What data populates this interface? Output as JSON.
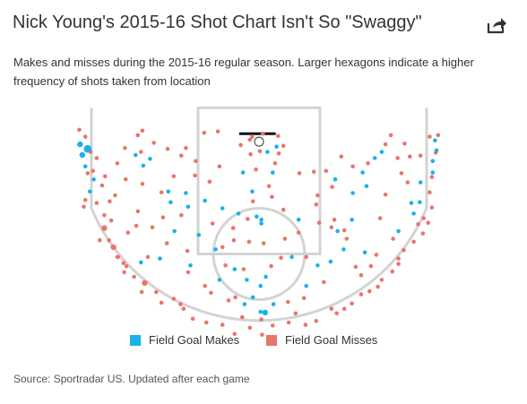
{
  "header": {
    "title": "Nick Young's 2015-16 Shot Chart Isn't So \"Swaggy\"",
    "share_icon": "share-arrow-icon"
  },
  "subtitle": "Makes and misses during the 2015-16 regular season. Larger hexagons indicate a higher frequency of shots taken from location",
  "legend": {
    "makes_label": "Field Goal Makes",
    "misses_label": "Field Goal Misses"
  },
  "colors": {
    "make": "#1ab2e8",
    "miss": "#e8766d",
    "court_lines": "#d3d3d3",
    "rim": "#555555",
    "backboard": "#111111"
  },
  "source": "Sportradar US. Updated after each game",
  "source_prefix": "Source: ",
  "chart_data": {
    "type": "scatter",
    "coordinate_units": "feet from basket (x: sideline-to-sideline, y: toward half court)",
    "xlim": [
      -25,
      25
    ],
    "ylim": [
      -4,
      30
    ],
    "series": [
      {
        "name": "Field Goal Makes",
        "points": [
          [
            -23.5,
            0.6,
            2
          ],
          [
            -23.2,
            2,
            2
          ],
          [
            -22.5,
            1.2,
            3
          ],
          [
            -22.8,
            3.5,
            1
          ],
          [
            -21.7,
            5.2,
            1
          ],
          [
            -22.2,
            6.8,
            1
          ],
          [
            -16.2,
            2,
            1
          ],
          [
            -15.2,
            3.4,
            1
          ],
          [
            -14.3,
            2.5,
            1
          ],
          [
            -11.9,
            6.8,
            1
          ],
          [
            -11.6,
            8.2,
            1
          ],
          [
            -9.6,
            7,
            1
          ],
          [
            -9.3,
            8.8,
            1
          ],
          [
            -11.1,
            12,
            1
          ],
          [
            -7.1,
            8,
            1
          ],
          [
            -7.9,
            12.5,
            1
          ],
          [
            -9,
            16.5,
            1
          ],
          [
            -13,
            15.6,
            1
          ],
          [
            -15.5,
            16.1,
            1
          ],
          [
            -5.7,
            14.4,
            1
          ],
          [
            -5.2,
            18.4,
            1
          ],
          [
            -3.2,
            17,
            1
          ],
          [
            -1.6,
            18.4,
            1
          ],
          [
            -0.8,
            20.7,
            1
          ],
          [
            -1.9,
            21.6,
            1
          ],
          [
            0.2,
            22.6,
            1
          ],
          [
            0.8,
            22.7,
            2
          ],
          [
            1.9,
            21.6,
            1
          ],
          [
            0.2,
            19.2,
            1
          ],
          [
            0.9,
            18,
            1
          ],
          [
            -4.8,
            9,
            1
          ],
          [
            -2.7,
            9.7,
            1
          ],
          [
            -0.3,
            10.1,
            1
          ],
          [
            0.3,
            10.5,
            1
          ],
          [
            0.3,
            11,
            1
          ],
          [
            -0.9,
            6.8,
            1
          ],
          [
            1.8,
            4.3,
            1
          ],
          [
            -2.1,
            4.3,
            1
          ],
          [
            1.1,
            1.6,
            1
          ],
          [
            2.3,
            0.9,
            1
          ],
          [
            5.2,
            10.5,
            1
          ],
          [
            4.3,
            15.4,
            1
          ],
          [
            6.2,
            19.2,
            1
          ],
          [
            7.7,
            16.5,
            1
          ],
          [
            9.4,
            16,
            1
          ],
          [
            11.1,
            14.4,
            1
          ],
          [
            10.3,
            12,
            1
          ],
          [
            13.9,
            14.8,
            1
          ],
          [
            12.2,
            10.5,
            1
          ],
          [
            12.3,
            7,
            1
          ],
          [
            10,
            5.2,
            1
          ],
          [
            14.1,
            6.1,
            1
          ],
          [
            13.6,
            4.3,
            1
          ],
          [
            15.2,
            2.4,
            1
          ],
          [
            16.1,
            1.6,
            1
          ],
          [
            18.3,
            12,
            1
          ],
          [
            20,
            8.3,
            1
          ],
          [
            20.3,
            9.7,
            1
          ],
          [
            21.1,
            8.2,
            1
          ],
          [
            21.2,
            5.6,
            1
          ],
          [
            22.8,
            4.3,
            1
          ],
          [
            22.8,
            2.8,
            1
          ],
          [
            23.3,
            1.4,
            1
          ],
          [
            23.1,
            0.1,
            1
          ]
        ]
      },
      {
        "name": "Field Goal Misses",
        "points": [
          [
            -23.6,
            -1.3,
            1
          ],
          [
            -22.8,
            -0.4,
            1
          ],
          [
            -22.1,
            1.6,
            1
          ],
          [
            -22.5,
            4.4,
            1
          ],
          [
            -21.8,
            4.1,
            1
          ],
          [
            -22.8,
            7.9,
            1
          ],
          [
            -23,
            8.8,
            1
          ],
          [
            -21.3,
            8.3,
            1
          ],
          [
            -20.3,
            9.9,
            1
          ],
          [
            -20.3,
            11.6,
            2
          ],
          [
            -19.7,
            13.2,
            1
          ],
          [
            -19.1,
            14.1,
            2
          ],
          [
            -18.5,
            15.4,
            1
          ],
          [
            -17.8,
            16.2,
            1
          ],
          [
            -17.7,
            17.4,
            1
          ],
          [
            -16.4,
            18,
            1
          ],
          [
            -15,
            18.8,
            2
          ],
          [
            -13.5,
            20,
            1
          ],
          [
            -12.8,
            21.4,
            1
          ],
          [
            -11.2,
            20.9,
            1
          ],
          [
            -10.3,
            21.6,
            1
          ],
          [
            -8.7,
            23.5,
            1
          ],
          [
            -6.9,
            24,
            1
          ],
          [
            -4.8,
            24.3,
            1
          ],
          [
            -3.2,
            25.5,
            1
          ],
          [
            -1.2,
            24.7,
            1
          ],
          [
            0.4,
            25.6,
            1
          ],
          [
            1.8,
            24.4,
            1
          ],
          [
            3.9,
            24,
            1
          ],
          [
            6.1,
            24.3,
            1
          ],
          [
            7.5,
            23.8,
            1
          ],
          [
            9.5,
            22.2,
            1
          ],
          [
            11.2,
            22.2,
            1
          ],
          [
            12.2,
            21.5,
            1
          ],
          [
            13.4,
            20.3,
            1
          ],
          [
            14.5,
            19.9,
            1
          ],
          [
            16.1,
            18.4,
            1
          ],
          [
            17.5,
            17.3,
            1
          ],
          [
            18.3,
            16.3,
            1
          ],
          [
            19,
            14.5,
            1
          ],
          [
            20.3,
            13.4,
            1
          ],
          [
            20.9,
            11.1,
            1
          ],
          [
            21.6,
            10.3,
            1
          ],
          [
            22.7,
            8.9,
            1
          ],
          [
            22.4,
            6.9,
            1
          ],
          [
            23.5,
            -0.6,
            1
          ],
          [
            23.2,
            1.7,
            1
          ],
          [
            22.7,
            4.9,
            1
          ],
          [
            -19.4,
            10.6,
            1
          ],
          [
            -17.2,
            12.2,
            1
          ],
          [
            -16.1,
            11.3,
            1
          ],
          [
            -14.6,
            15.4,
            1
          ],
          [
            -17.4,
            16.6,
            1
          ],
          [
            -15.9,
            9.4,
            1
          ],
          [
            -14,
            11.5,
            1
          ],
          [
            -12.6,
            10.2,
            1
          ],
          [
            -10.2,
            9.9,
            1
          ],
          [
            -12.8,
            6.9,
            1
          ],
          [
            -15.3,
            5.8,
            1
          ],
          [
            -17.5,
            5.2,
            1
          ],
          [
            -18.6,
            3.1,
            1
          ],
          [
            -17.6,
            1.1,
            1
          ],
          [
            -15.9,
            -0.6,
            1
          ],
          [
            -15.3,
            -1.2,
            1
          ],
          [
            -13.8,
            0.4,
            1
          ],
          [
            -12,
            1.2,
            1
          ],
          [
            -11.2,
            4.8,
            1
          ],
          [
            -8.4,
            4.7,
            1
          ],
          [
            -8.3,
            2.8,
            1
          ],
          [
            -6.5,
            5.5,
            1
          ],
          [
            -6.1,
            11,
            1
          ],
          [
            -4.8,
            14.1,
            1
          ],
          [
            -3.3,
            13.2,
            1
          ],
          [
            -3.4,
            11.6,
            1
          ],
          [
            -5.2,
            3.5,
            1
          ],
          [
            -2.4,
            0.7,
            1
          ],
          [
            -1.2,
            0,
            1
          ],
          [
            -1.1,
            1.9,
            1
          ],
          [
            0.1,
            1.5,
            1
          ],
          [
            2.6,
            1.8,
            1
          ],
          [
            3.2,
            0.8,
            1
          ],
          [
            2.1,
            3.1,
            1
          ],
          [
            1.3,
            6.1,
            1
          ],
          [
            1.7,
            7.5,
            1
          ],
          [
            -0.8,
            8.1,
            1
          ],
          [
            -1.5,
            10.4,
            1
          ],
          [
            3.2,
            9.2,
            1
          ],
          [
            3.4,
            13,
            1
          ],
          [
            0.6,
            13.6,
            1
          ],
          [
            -1.3,
            13.4,
            1
          ],
          [
            5.2,
            12.2,
            1
          ],
          [
            7.9,
            10.9,
            1
          ],
          [
            7.5,
            8.5,
            1
          ],
          [
            7.7,
            7.3,
            1
          ],
          [
            7.2,
            4.2,
            1
          ],
          [
            8.8,
            4.1,
            1
          ],
          [
            9.6,
            6.2,
            1
          ],
          [
            9.9,
            10.5,
            1
          ],
          [
            9.5,
            11.5,
            1
          ],
          [
            11.2,
            11.9,
            1
          ],
          [
            11.5,
            13,
            1
          ],
          [
            12.7,
            16.7,
            1
          ],
          [
            13.4,
            17.8,
            1
          ],
          [
            14.7,
            16.6,
            1
          ],
          [
            15.4,
            15.1,
            1
          ],
          [
            17.6,
            13,
            1
          ],
          [
            15.9,
            10.3,
            1
          ],
          [
            16.6,
            7.2,
            1
          ],
          [
            16.6,
            0.6,
            1
          ],
          [
            17.3,
            -0.6,
            1
          ],
          [
            18.2,
            2.4,
            1
          ],
          [
            18.7,
            4.4,
            1
          ],
          [
            19.5,
            5.6,
            1
          ],
          [
            21.2,
            2.1,
            1
          ],
          [
            22.4,
            -0.4,
            1
          ],
          [
            -4.4,
            16.5,
            1
          ],
          [
            -2,
            17,
            1
          ],
          [
            1.6,
            16.6,
            1
          ],
          [
            2.9,
            15.5,
            1
          ],
          [
            6.2,
            15.4,
            1
          ],
          [
            -0.9,
            -0.4,
            1
          ],
          [
            0.5,
            -0.8,
            1
          ],
          [
            2.5,
            -0.5,
            1
          ],
          [
            -20.6,
            6,
            1
          ],
          [
            -12.1,
            13.6,
            1
          ],
          [
            -9.4,
            14.6,
            1
          ],
          [
            -9.3,
            17.4,
            1
          ],
          [
            -6.3,
            20.1,
            1
          ],
          [
            -7.1,
            19.2,
            1
          ],
          [
            -4,
            21.1,
            1
          ],
          [
            -3.1,
            20.7,
            1
          ],
          [
            3.8,
            21.3,
            1
          ],
          [
            5.9,
            20.8,
            1
          ],
          [
            8.5,
            18.7,
            1
          ],
          [
            -0.4,
            3.9,
            1
          ],
          [
            0.3,
            23.6,
            1
          ],
          [
            -2.2,
            23.3,
            1
          ],
          [
            4.8,
            22.8,
            1
          ],
          [
            -21.3,
            2.4,
            1
          ],
          [
            -20.2,
            4.8,
            1
          ],
          [
            -18.9,
            7.3,
            1
          ],
          [
            -19.6,
            8.1,
            1
          ],
          [
            -15.5,
            1.6,
            1
          ],
          [
            -10.2,
            2.1,
            1
          ],
          [
            -9.6,
            1.1,
            1
          ],
          [
            -7.2,
            -0.9,
            1
          ],
          [
            -5.4,
            -1.1,
            1
          ],
          [
            5.3,
            4.4,
            1
          ],
          [
            10.8,
            2.2,
            1
          ],
          [
            12.3,
            3.5,
            1
          ],
          [
            14.3,
            3.1,
            1
          ],
          [
            19.1,
            0.5,
            1
          ],
          [
            19.8,
            2.2,
            1
          ],
          [
            -20.9,
            13.2,
            1
          ],
          [
            -18.6,
            15.4,
            1
          ],
          [
            21.5,
            12.3,
            1
          ],
          [
            22.2,
            10.9,
            1
          ],
          [
            18.3,
            15.6,
            1
          ],
          [
            -15.4,
            20,
            1
          ],
          [
            -9.9,
            22.2,
            1
          ],
          [
            10.2,
            22.8,
            1
          ],
          [
            15.6,
            19.3,
            1
          ]
        ]
      }
    ]
  }
}
